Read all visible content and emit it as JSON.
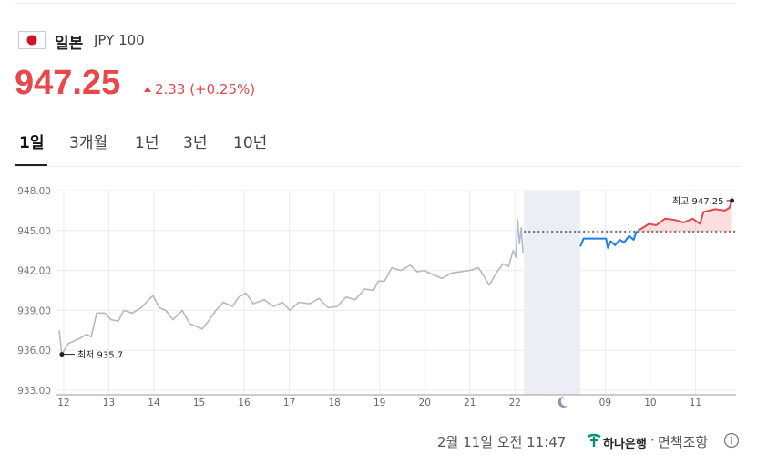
{
  "header": {
    "country": "일본",
    "currency": "JPY 100",
    "price": "947.25",
    "change": "2.33",
    "change_pct": "(+0.25%)"
  },
  "tabs": {
    "items": [
      "1일",
      "3개월",
      "1년",
      "3년",
      "10년"
    ],
    "active": 0
  },
  "chart_data": {
    "type": "line",
    "xlim": [
      -0.16,
      14.9
    ],
    "ylim": [
      933,
      948
    ],
    "yticks": [
      {
        "value": 933,
        "label": "933.00"
      },
      {
        "value": 936,
        "label": "936.00"
      },
      {
        "value": 939,
        "label": "939.00"
      },
      {
        "value": 942,
        "label": "942.00"
      },
      {
        "value": 945,
        "label": "945.00"
      },
      {
        "value": 948,
        "label": "948.00"
      }
    ],
    "xticks": [
      {
        "value": 0,
        "label": "12"
      },
      {
        "value": 1,
        "label": "13"
      },
      {
        "value": 2,
        "label": "14"
      },
      {
        "value": 3,
        "label": "15"
      },
      {
        "value": 4,
        "label": "16"
      },
      {
        "value": 5,
        "label": "17"
      },
      {
        "value": 6,
        "label": "18"
      },
      {
        "value": 7,
        "label": "19"
      },
      {
        "value": 8,
        "label": "20"
      },
      {
        "value": 9,
        "label": "21"
      },
      {
        "value": 10,
        "label": "22"
      },
      {
        "value": 12,
        "label": "09"
      },
      {
        "value": 13,
        "label": "10"
      },
      {
        "value": 14,
        "label": "11"
      }
    ],
    "grid": true,
    "shaded_range": [
      10.2,
      11.45
    ],
    "reference_line": 944.92,
    "series": [
      {
        "color": "#b4b7cc",
        "fill": false,
        "x": [
          -0.1,
          -0.04,
          0.1,
          0.3,
          0.51,
          0.61,
          0.73,
          0.91,
          1.05,
          1.21,
          1.33,
          1.52,
          1.72,
          1.88,
          1.98,
          2.12,
          2.26,
          2.42,
          2.63,
          2.79,
          2.93,
          3.07,
          3.23,
          3.37,
          3.54,
          3.74,
          3.88,
          4.04,
          4.2,
          4.44,
          4.65,
          4.85,
          5.01,
          5.21,
          5.45,
          5.66,
          5.86,
          6.06,
          6.26,
          6.46,
          6.67,
          6.87,
          6.97,
          7.11,
          7.27,
          7.47,
          7.68,
          7.84,
          7.98,
          8.18,
          8.38,
          8.59,
          8.79,
          8.99,
          9.19,
          9.29,
          9.43,
          9.6,
          9.74,
          9.86,
          9.96,
          10.02,
          10.06,
          10.1,
          10.14,
          10.18
        ],
        "values": [
          937.5,
          935.7,
          936.5,
          936.8,
          937.2,
          937.0,
          938.8,
          938.8,
          938.3,
          938.2,
          939.0,
          938.8,
          939.2,
          939.8,
          940.1,
          939.2,
          939.0,
          938.3,
          939.0,
          938.0,
          937.8,
          937.6,
          938.3,
          939.0,
          939.6,
          939.3,
          940.0,
          940.3,
          939.5,
          939.8,
          939.3,
          939.6,
          939.0,
          939.6,
          939.5,
          939.9,
          939.2,
          939.3,
          940.0,
          939.8,
          940.6,
          940.5,
          941.2,
          941.2,
          942.2,
          942.0,
          942.4,
          941.9,
          942.0,
          941.7,
          941.4,
          941.8,
          941.9,
          942.0,
          942.2,
          941.7,
          940.9,
          941.9,
          942.5,
          942.3,
          943.5,
          943.0,
          945.8,
          944.0,
          945.2,
          943.3
        ]
      },
      {
        "color": "#1a7cf0",
        "fill": false,
        "x": [
          11.45,
          11.52,
          11.92,
          12.02,
          12.06,
          12.12,
          12.22,
          12.32,
          12.42,
          12.53,
          12.63,
          12.69,
          12.73
        ],
        "values": [
          943.8,
          944.4,
          944.4,
          944.4,
          943.7,
          944.2,
          943.9,
          944.3,
          944.1,
          944.6,
          944.3,
          944.9,
          944.9
        ]
      },
      {
        "color": "#e8474b",
        "fill": true,
        "x": [
          12.73,
          12.83,
          12.97,
          13.13,
          13.33,
          13.54,
          13.74,
          13.94,
          14.1,
          14.18,
          14.44,
          14.65,
          14.75,
          14.81
        ],
        "values": [
          945.0,
          945.2,
          945.5,
          945.4,
          945.9,
          945.8,
          945.6,
          945.9,
          945.5,
          946.4,
          946.6,
          946.5,
          946.7,
          947.25
        ]
      }
    ],
    "annotations": [
      {
        "text": "최저 935.7",
        "x": -0.04,
        "y": 935.7,
        "side": "right"
      },
      {
        "text": "최고 947.25",
        "x": 14.81,
        "y": 947.25,
        "side": "left"
      }
    ]
  },
  "footer": {
    "timestamp": "2월 11일 오전 11:47",
    "bank": "하나은행",
    "separator": "·",
    "disclaimer": "면책조항"
  }
}
